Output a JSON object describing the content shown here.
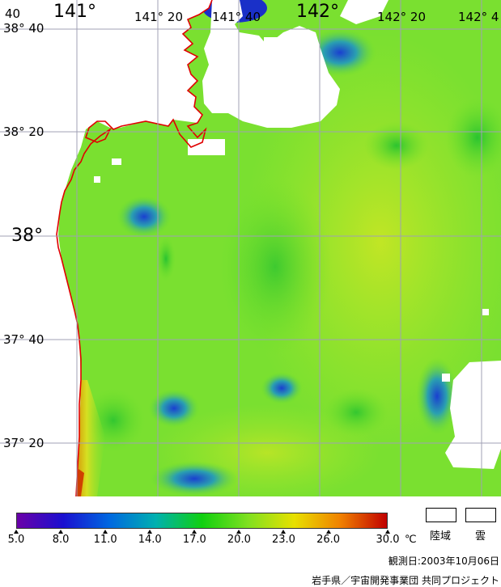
{
  "map": {
    "lon_labels": [
      "141°",
      "141° 20",
      "141° 40",
      "142°",
      "142° 20",
      "142° 4"
    ],
    "lat_labels": [
      "38° 40",
      "38° 20",
      "38°",
      "37° 40",
      "37° 20"
    ],
    "corner_label": "40"
  },
  "colorbar": {
    "ticks": [
      "5.0",
      "8.0",
      "11.0",
      "14.0",
      "17.0",
      "20.0",
      "23.0",
      "26.0",
      "30.0"
    ],
    "unit": "℃",
    "colors": [
      "#6a00a8",
      "#1a10d0",
      "#0068e0",
      "#00b0b0",
      "#10d010",
      "#80e020",
      "#e8e000",
      "#f08000",
      "#c00000"
    ]
  },
  "legend": {
    "land": "陸域",
    "cloud": "雲"
  },
  "footer": {
    "observation_date": "観測日:2003年10月06日",
    "credit": "岩手県／宇宙開発事業団 共同プロジェクト"
  }
}
